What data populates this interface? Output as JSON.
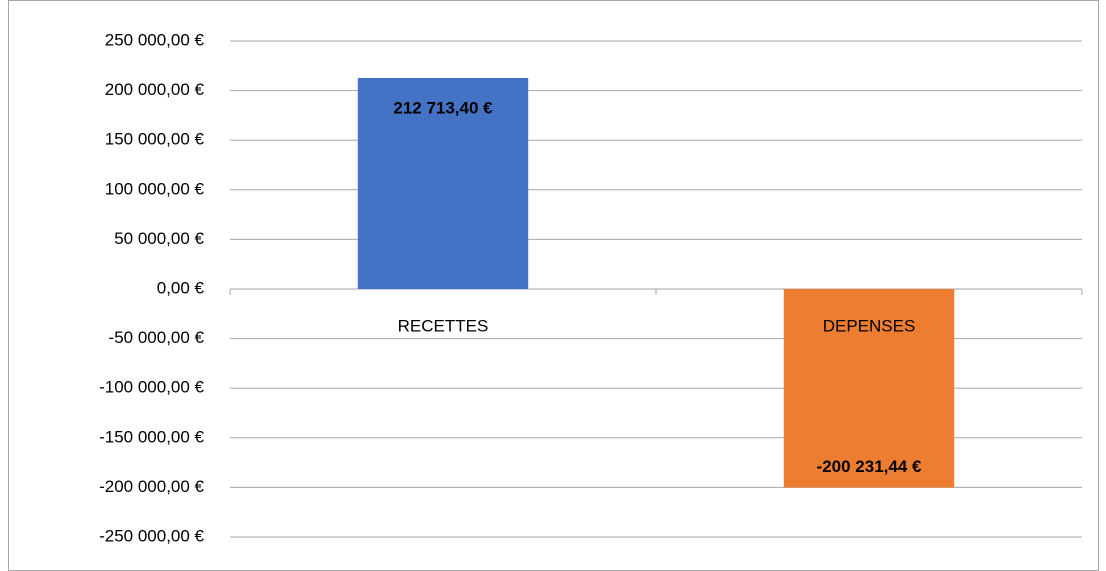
{
  "chart_data": {
    "type": "bar",
    "categories": [
      "RECETTES",
      "DEPENSES"
    ],
    "values": [
      212713.4,
      -200231.44
    ],
    "value_labels": [
      "212 713,40 €",
      "-200 231,44 €"
    ],
    "colors": [
      "#4472c4",
      "#ed7d31"
    ],
    "ylim": [
      -250000,
      250000
    ],
    "yticks": [
      {
        "value": 250000,
        "label": "250 000,00 €"
      },
      {
        "value": 200000,
        "label": "200 000,00 €"
      },
      {
        "value": 150000,
        "label": "150 000,00 €"
      },
      {
        "value": 100000,
        "label": "100 000,00 €"
      },
      {
        "value": 50000,
        "label": "50 000,00 €"
      },
      {
        "value": 0,
        "label": "0,00 €"
      },
      {
        "value": -50000,
        "label": "-50 000,00 €"
      },
      {
        "value": -100000,
        "label": "-100 000,00 €"
      },
      {
        "value": -150000,
        "label": "-150 000,00 €"
      },
      {
        "value": -200000,
        "label": "-200 000,00 €"
      },
      {
        "value": -250000,
        "label": "-250 000,00 €"
      }
    ],
    "grid": true
  }
}
